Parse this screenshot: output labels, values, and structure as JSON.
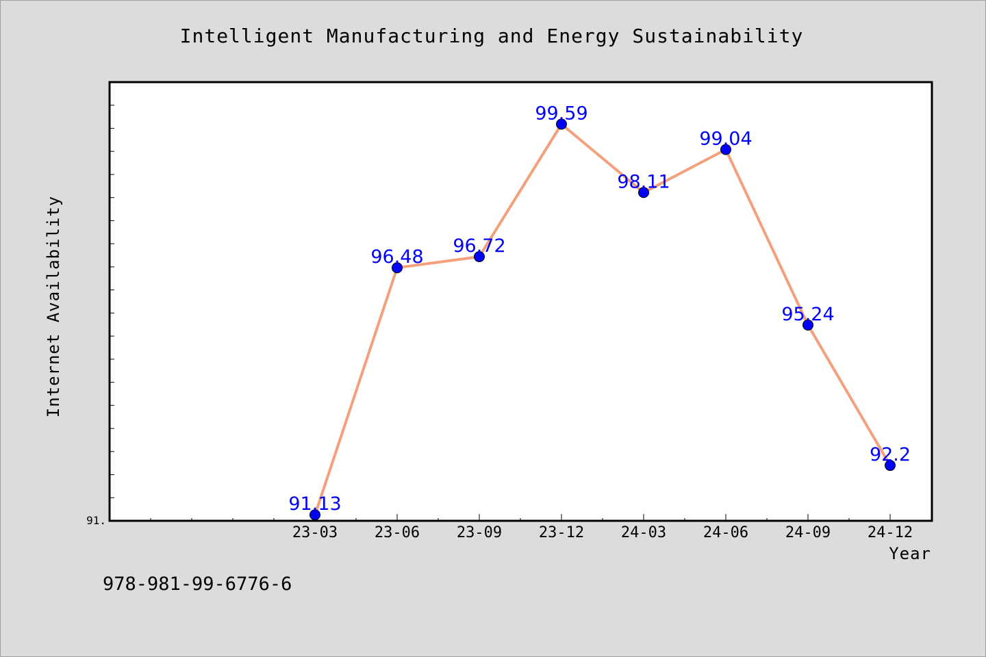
{
  "chart_data": {
    "type": "line",
    "title": "Intelligent Manufacturing and Energy Sustainability",
    "xlabel": "Year",
    "ylabel": "Internet Availability",
    "categories": [
      "23-03",
      "23-06",
      "23-09",
      "23-12",
      "24-03",
      "24-06",
      "24-09",
      "24-12"
    ],
    "values": [
      91.13,
      96.48,
      96.72,
      99.59,
      98.11,
      99.04,
      95.24,
      92.2
    ],
    "value_labels": [
      "91.13",
      "96.48",
      "96.72",
      "99.59",
      "98.11",
      "99.04",
      "95.24",
      "92.2"
    ],
    "ylim": [
      91,
      100.5
    ],
    "y_min_label": "91.",
    "grid": false,
    "colors": {
      "line": "#f4a07c",
      "marker": "#0000ff",
      "label": "#0000ff",
      "plot_bg": "#ffffff",
      "page_bg": "#dcdcdc"
    }
  },
  "footer": {
    "isbn": "978-981-99-6776-6"
  }
}
